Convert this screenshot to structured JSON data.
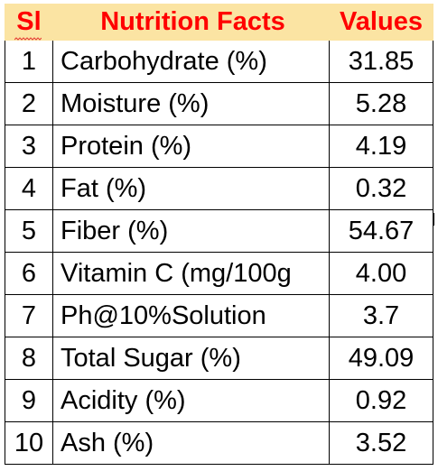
{
  "table": {
    "header": {
      "sl": "Sl",
      "name": "Nutrition Facts",
      "value": "Values"
    },
    "rows": [
      {
        "sl": "1",
        "name": "Carbohydrate (%)",
        "value": "31.85"
      },
      {
        "sl": "2",
        "name": "Moisture (%)",
        "value": "5.28"
      },
      {
        "sl": "3",
        "name": "Protein (%)",
        "value": "4.19"
      },
      {
        "sl": "4",
        "name": "Fat (%)",
        "value": "0.32"
      },
      {
        "sl": "5",
        "name": "Fiber (%)",
        "value": "54.67"
      },
      {
        "sl": "6",
        "name": "Vitamin C (mg/100g",
        "value": "4.00"
      },
      {
        "sl": "7",
        "name": "Ph@10%Solution",
        "value": "3.7"
      },
      {
        "sl": "8",
        "name": "Total Sugar (%)",
        "value": "49.09"
      },
      {
        "sl": "9",
        "name": "Acidity (%)",
        "value": "0.92"
      },
      {
        "sl": "10",
        "name": "Ash (%)",
        "value": "3.52"
      }
    ]
  },
  "colors": {
    "header_background": "#fbe4a3",
    "header_text": "#ff0000",
    "spellcheck_underline": "#e53935",
    "border": "#000000"
  }
}
